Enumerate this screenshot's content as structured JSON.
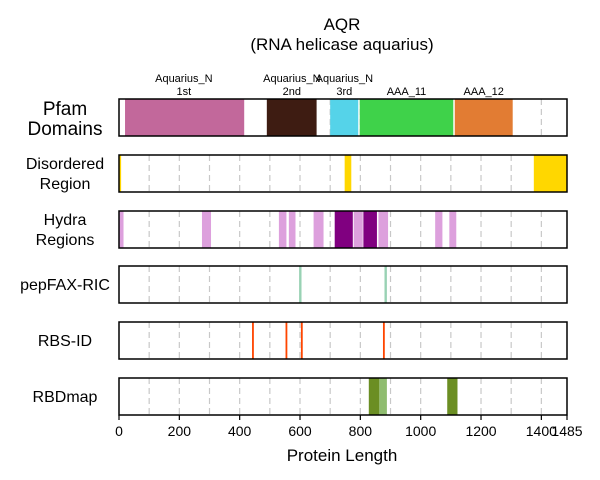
{
  "chart_data": {
    "type": "bar",
    "title": "AQR",
    "subtitle": "(RNA helicase aquarius)",
    "xlabel": "Protein Length",
    "xlim": [
      0,
      1485
    ],
    "x_ticks": [
      {
        "value": 0,
        "label": "0"
      },
      {
        "value": 200,
        "label": "200"
      },
      {
        "value": 400,
        "label": "400"
      },
      {
        "value": 600,
        "label": "600"
      },
      {
        "value": 800,
        "label": "800"
      },
      {
        "value": 1000,
        "label": "1000"
      },
      {
        "value": 1200,
        "label": "1200"
      },
      {
        "value": 1400,
        "label": "1400"
      },
      {
        "value": 1485,
        "label": "1485"
      }
    ],
    "grid": {
      "vertical_dashed_every": 100
    },
    "tracks": [
      {
        "label_lines": [
          "Pfam",
          "Domains"
        ],
        "label_size": "large",
        "segments": [
          {
            "start": 20,
            "end": 415,
            "color": "#c2689b"
          },
          {
            "start": 490,
            "end": 655,
            "color": "#3e1c12"
          },
          {
            "start": 700,
            "end": 793,
            "color": "#55d3e9"
          },
          {
            "start": 798,
            "end": 1108,
            "color": "#3fd24a"
          },
          {
            "start": 1113,
            "end": 1305,
            "color": "#e27c33"
          }
        ],
        "annotations": [
          {
            "x": 215,
            "lines": [
              "Aquarius_N",
              "1st"
            ]
          },
          {
            "x": 573,
            "lines": [
              "Aquarius_N",
              "2nd"
            ]
          },
          {
            "x": 747,
            "lines": [
              "Aquarius_N",
              "3rd"
            ]
          },
          {
            "x": 953,
            "lines": [
              "AAA_11"
            ]
          },
          {
            "x": 1209,
            "lines": [
              "AAA_12"
            ]
          }
        ]
      },
      {
        "label_lines": [
          "Disordered",
          "Region"
        ],
        "segments": [
          {
            "start": 0,
            "end": 7,
            "color": "#ffd700"
          },
          {
            "start": 748,
            "end": 770,
            "color": "#ffd700"
          },
          {
            "start": 1375,
            "end": 1485,
            "color": "#ffd700"
          }
        ]
      },
      {
        "label_lines": [
          "Hydra",
          "Regions"
        ],
        "segments": [
          {
            "start": 0,
            "end": 15,
            "color": "#dda0dd"
          },
          {
            "start": 275,
            "end": 305,
            "color": "#dda0dd"
          },
          {
            "start": 530,
            "end": 555,
            "color": "#dda0dd"
          },
          {
            "start": 563,
            "end": 585,
            "color": "#dda0dd"
          },
          {
            "start": 645,
            "end": 678,
            "color": "#dda0dd"
          },
          {
            "start": 715,
            "end": 775,
            "color": "#800080"
          },
          {
            "start": 778,
            "end": 808,
            "color": "#dda0dd"
          },
          {
            "start": 810,
            "end": 855,
            "color": "#800080"
          },
          {
            "start": 860,
            "end": 892,
            "color": "#dda0dd"
          },
          {
            "start": 1048,
            "end": 1072,
            "color": "#dda0dd"
          },
          {
            "start": 1095,
            "end": 1118,
            "color": "#dda0dd"
          }
        ]
      },
      {
        "label_lines": [
          "pepFAX-RIC"
        ],
        "segments": [
          {
            "start": 597,
            "end": 605,
            "color": "#99d2b4"
          },
          {
            "start": 880,
            "end": 888,
            "color": "#99d2b4"
          }
        ]
      },
      {
        "label_lines": [
          "RBS-ID"
        ],
        "segments": [
          {
            "start": 441,
            "end": 447,
            "color": "#ff4500"
          },
          {
            "start": 552,
            "end": 558,
            "color": "#ff4500"
          },
          {
            "start": 603,
            "end": 609,
            "color": "#ff4500"
          },
          {
            "start": 875,
            "end": 881,
            "color": "#ff4500"
          }
        ]
      },
      {
        "label_lines": [
          "RBDmap"
        ],
        "segments": [
          {
            "start": 828,
            "end": 863,
            "color": "#6b8e23"
          },
          {
            "start": 863,
            "end": 888,
            "color": "#8fbc6f"
          },
          {
            "start": 1088,
            "end": 1122,
            "color": "#6b8e23"
          }
        ]
      }
    ]
  }
}
